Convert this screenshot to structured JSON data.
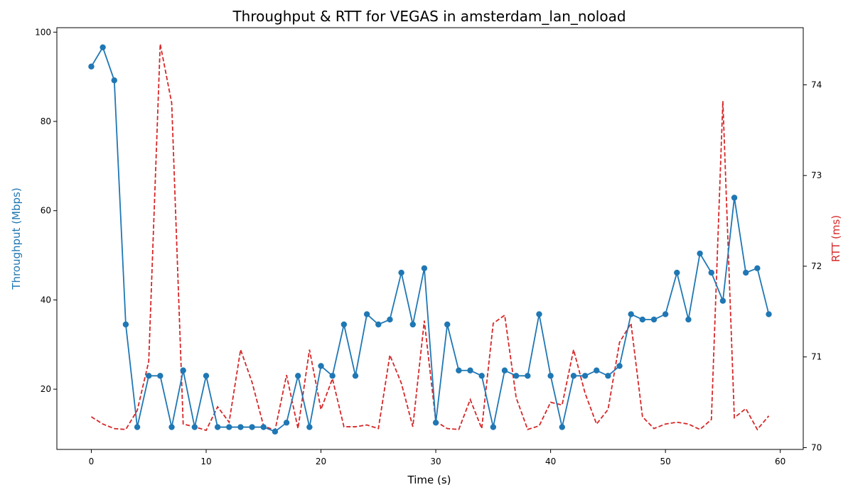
{
  "chart_data": {
    "type": "line",
    "title": "Throughput & RTT for VEGAS in amsterdam_lan_noload",
    "xlabel": "Time (s)",
    "ylabel_left": "Throughput (Mbps)",
    "ylabel_right": "RTT (ms)",
    "xlim": [
      -3,
      62
    ],
    "ylim_left": [
      6.5,
      101
    ],
    "ylim_right": [
      69.98,
      74.63
    ],
    "x_ticks": [
      0,
      10,
      20,
      30,
      40,
      50,
      60
    ],
    "y_left_ticks": [
      20,
      40,
      60,
      80,
      100
    ],
    "y_right_ticks": [
      70,
      71,
      72,
      73,
      74
    ],
    "grid": false,
    "legend": "none",
    "colors": {
      "throughput": "#1f77b4",
      "rtt": "#d62728"
    },
    "x": [
      0,
      1,
      2,
      3,
      4,
      5,
      6,
      7,
      8,
      9,
      10,
      11,
      12,
      13,
      14,
      15,
      16,
      17,
      18,
      19,
      20,
      21,
      22,
      23,
      24,
      25,
      26,
      27,
      28,
      29,
      30,
      31,
      32,
      33,
      34,
      35,
      36,
      37,
      38,
      39,
      40,
      41,
      42,
      43,
      44,
      45,
      46,
      47,
      48,
      49,
      50,
      51,
      52,
      53,
      54,
      55,
      56,
      57,
      58,
      59
    ],
    "series": [
      {
        "axis": "left",
        "style": "solid-markers",
        "values": [
          92.3,
          96.6,
          89.2,
          34.5,
          11.5,
          23.0,
          23.0,
          11.5,
          24.2,
          11.5,
          23.0,
          11.5,
          11.5,
          11.5,
          11.5,
          11.5,
          10.5,
          12.5,
          23.0,
          11.5,
          25.2,
          23.0,
          34.5,
          23.0,
          36.8,
          34.5,
          35.6,
          46.1,
          34.5,
          47.1,
          12.5,
          34.5,
          24.2,
          24.2,
          23.0,
          11.5,
          24.2,
          23.0,
          23.0,
          36.8,
          23.0,
          11.5,
          23.0,
          23.0,
          24.2,
          23.0,
          25.2,
          36.8,
          35.6,
          35.6,
          36.8,
          46.1,
          35.6,
          50.4,
          46.1,
          39.8,
          62.9,
          46.1,
          47.1,
          36.8
        ]
      },
      {
        "axis": "right",
        "style": "dashed",
        "values": [
          70.34,
          70.26,
          70.21,
          70.2,
          70.41,
          70.95,
          74.45,
          73.8,
          70.26,
          70.23,
          70.19,
          70.45,
          70.28,
          71.08,
          70.72,
          70.24,
          70.19,
          70.8,
          70.21,
          71.08,
          70.42,
          70.76,
          70.23,
          70.23,
          70.25,
          70.21,
          71.02,
          70.71,
          70.23,
          71.4,
          70.29,
          70.21,
          70.2,
          70.53,
          70.21,
          71.37,
          71.46,
          70.55,
          70.2,
          70.24,
          70.5,
          70.47,
          71.08,
          70.6,
          70.26,
          70.42,
          71.16,
          71.37,
          70.34,
          70.21,
          70.26,
          70.28,
          70.26,
          70.2,
          70.31,
          73.82,
          70.33,
          70.43,
          70.2,
          70.35
        ]
      }
    ]
  }
}
